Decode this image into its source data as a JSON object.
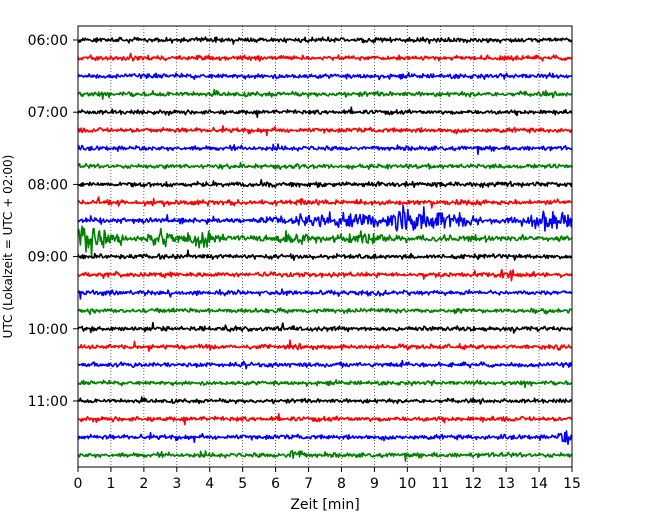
{
  "chart_data": {
    "type": "line",
    "title": "",
    "xlabel": "Zeit  [min]",
    "ylabel": "UTC (Lokalzeit = UTC + 02:00)",
    "xlim": [
      0,
      15
    ],
    "x_ticks": [
      0,
      1,
      2,
      3,
      4,
      5,
      6,
      7,
      8,
      9,
      10,
      11,
      12,
      13,
      14,
      15
    ],
    "grid": "vertical dotted at each minute",
    "row_interval_min": 15,
    "y_tick_labels": [
      "06:00",
      "07:00",
      "08:00",
      "09:00",
      "10:00",
      "11:00"
    ],
    "row_colors": [
      "#000000",
      "#ff0000",
      "#0000ff",
      "#008000"
    ],
    "rows": [
      {
        "start": "06:00",
        "color": "#000000",
        "amp": 0.3
      },
      {
        "start": "06:15",
        "color": "#ff0000",
        "amp": 0.3
      },
      {
        "start": "06:30",
        "color": "#0000ff",
        "amp": 0.3
      },
      {
        "start": "06:45",
        "color": "#008000",
        "amp": 0.3
      },
      {
        "start": "07:00",
        "color": "#000000",
        "amp": 0.28
      },
      {
        "start": "07:15",
        "color": "#ff0000",
        "amp": 0.3
      },
      {
        "start": "07:30",
        "color": "#0000ff",
        "amp": 0.3
      },
      {
        "start": "07:45",
        "color": "#008000",
        "amp": 0.28
      },
      {
        "start": "08:00",
        "color": "#000000",
        "amp": 0.32
      },
      {
        "start": "08:15",
        "color": "#ff0000",
        "amp": 0.34
      },
      {
        "start": "08:30",
        "color": "#0000ff",
        "amp": 0.34,
        "events": [
          {
            "t": 10.3,
            "amp": 1.3,
            "w": 1.4
          },
          {
            "t": 14.5,
            "amp": 1.0,
            "w": 0.9
          },
          {
            "t": 7.5,
            "amp": 0.6,
            "w": 1.5
          }
        ]
      },
      {
        "start": "08:45",
        "color": "#008000",
        "amp": 0.4,
        "events": [
          {
            "t": 0.2,
            "amp": 2.2,
            "w": 0.6
          },
          {
            "t": 2.5,
            "amp": 1.3,
            "w": 0.3
          },
          {
            "t": 3.9,
            "amp": 0.9,
            "w": 0.5
          },
          {
            "t": 6.5,
            "amp": 0.6,
            "w": 0.5
          },
          {
            "t": 8.7,
            "amp": 0.6,
            "w": 0.5
          }
        ]
      },
      {
        "start": "09:00",
        "color": "#000000",
        "amp": 0.3
      },
      {
        "start": "09:15",
        "color": "#ff0000",
        "amp": 0.3,
        "events": [
          {
            "t": 13.0,
            "amp": 0.7,
            "w": 0.2
          }
        ]
      },
      {
        "start": "09:30",
        "color": "#0000ff",
        "amp": 0.28
      },
      {
        "start": "09:45",
        "color": "#008000",
        "amp": 0.28
      },
      {
        "start": "10:00",
        "color": "#000000",
        "amp": 0.3
      },
      {
        "start": "10:15",
        "color": "#ff0000",
        "amp": 0.28
      },
      {
        "start": "10:30",
        "color": "#0000ff",
        "amp": 0.3
      },
      {
        "start": "10:45",
        "color": "#008000",
        "amp": 0.26
      },
      {
        "start": "11:00",
        "color": "#000000",
        "amp": 0.26
      },
      {
        "start": "11:15",
        "color": "#ff0000",
        "amp": 0.3
      },
      {
        "start": "11:30",
        "color": "#0000ff",
        "amp": 0.3,
        "events": [
          {
            "t": 14.8,
            "amp": 0.8,
            "w": 0.2
          }
        ]
      },
      {
        "start": "11:45",
        "color": "#008000",
        "amp": 0.3,
        "events": [
          {
            "t": 6.6,
            "amp": 0.8,
            "w": 0.2
          }
        ]
      }
    ]
  }
}
